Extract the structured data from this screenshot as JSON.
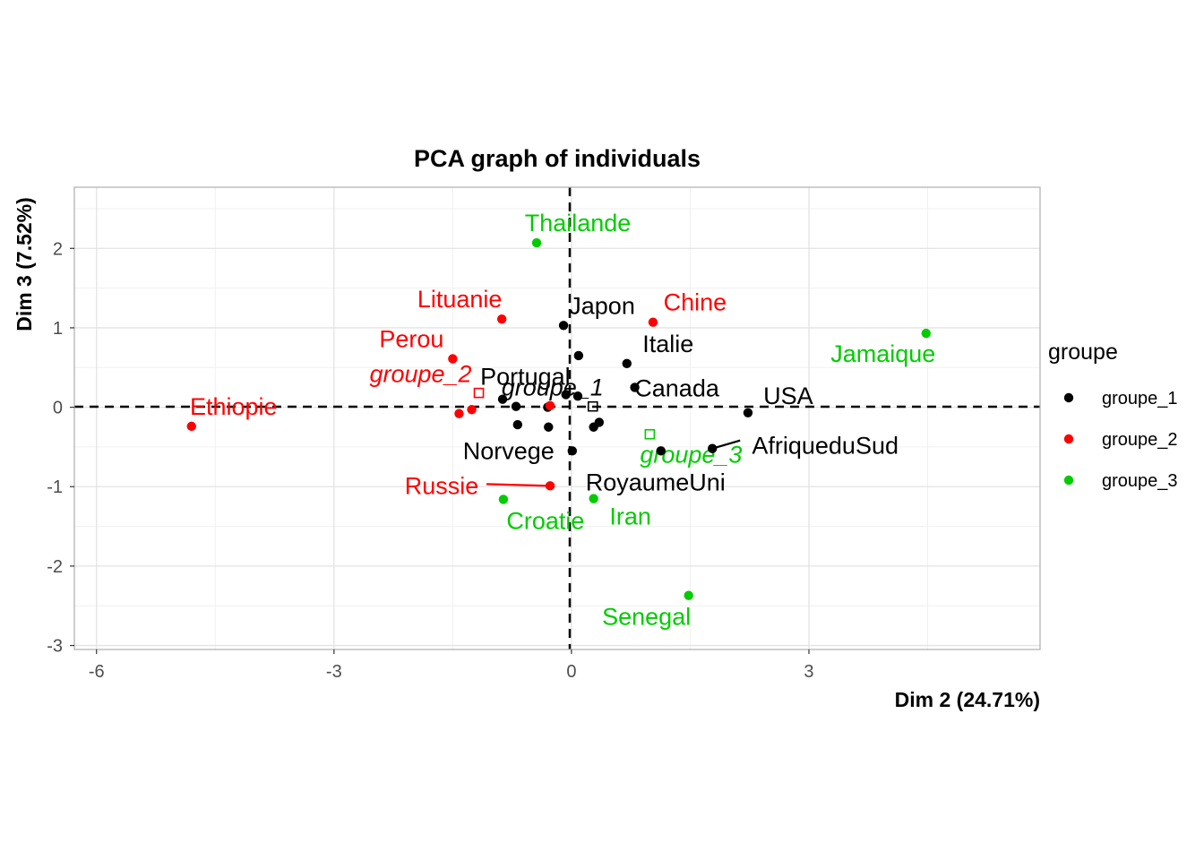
{
  "chart_data": {
    "type": "scatter",
    "title": "PCA graph of individuals",
    "xlabel": "Dim 2 (24.71%)",
    "ylabel": "Dim 3 (7.52%)",
    "xlim": [
      -6.28,
      5.92
    ],
    "ylim": [
      -3.05,
      2.77
    ],
    "xticks": [
      -6,
      -3,
      0,
      3
    ],
    "xtick_labels": [
      "-6",
      "-3",
      "0",
      "3"
    ],
    "yticks": [
      -3,
      -2,
      -1,
      0,
      1,
      2
    ],
    "ytick_labels": [
      "-3",
      "-2",
      "-1",
      "0",
      "1",
      "2"
    ],
    "grid": true,
    "reference_lines": {
      "x": 0,
      "y": 0,
      "style": "dashed"
    },
    "legend": {
      "title": "groupe",
      "position": "right",
      "entries": [
        "groupe_1",
        "groupe_2",
        "groupe_3"
      ]
    },
    "colors": {
      "groupe_1": "#000000",
      "groupe_2": "#ff0000",
      "groupe_3": "#00cc00"
    },
    "series": [
      {
        "name": "groupe_1",
        "points": [
          {
            "label": "Japon",
            "x": -0.1,
            "y": 1.03
          },
          {
            "label": "Italie",
            "x": 0.7,
            "y": 0.55
          },
          {
            "label": "Portugal",
            "x": -0.3,
            "y": 0.0
          },
          {
            "label": "Canada",
            "x": 0.8,
            "y": 0.25
          },
          {
            "label": "USA",
            "x": 2.23,
            "y": -0.07
          },
          {
            "label": "AfriqueduSud",
            "x": 1.78,
            "y": -0.52
          },
          {
            "label": "Norvege",
            "x": 0.01,
            "y": -0.55
          },
          {
            "label": "RoyaumeUni",
            "x": 1.13,
            "y": -0.55
          },
          {
            "label": "",
            "x": 0.09,
            "y": 0.65
          },
          {
            "label": "",
            "x": 0.08,
            "y": 0.14
          },
          {
            "label": "",
            "x": -0.07,
            "y": 0.16
          },
          {
            "label": "",
            "x": -0.87,
            "y": 0.1
          },
          {
            "label": "",
            "x": -0.7,
            "y": 0.01
          },
          {
            "label": "",
            "x": -0.68,
            "y": -0.22
          },
          {
            "label": "",
            "x": -0.29,
            "y": -0.25
          },
          {
            "label": "",
            "x": 0.28,
            "y": -0.25
          },
          {
            "label": "",
            "x": 0.35,
            "y": -0.19
          }
        ]
      },
      {
        "name": "groupe_2",
        "points": [
          {
            "label": "Lituanie",
            "x": -0.88,
            "y": 1.11
          },
          {
            "label": "Chine",
            "x": 1.03,
            "y": 1.07
          },
          {
            "label": "Perou",
            "x": -1.5,
            "y": 0.61
          },
          {
            "label": "Ethiopie",
            "x": -4.8,
            "y": -0.24
          },
          {
            "label": "Russie",
            "x": -0.27,
            "y": -0.99
          },
          {
            "label": "",
            "x": -1.42,
            "y": -0.08
          },
          {
            "label": "",
            "x": -1.26,
            "y": -0.03
          },
          {
            "label": "",
            "x": -0.27,
            "y": 0.02
          }
        ]
      },
      {
        "name": "groupe_3",
        "points": [
          {
            "label": "Thailande",
            "x": -0.44,
            "y": 2.07
          },
          {
            "label": "Jamaique",
            "x": 4.48,
            "y": 0.93
          },
          {
            "label": "Croatie",
            "x": -0.86,
            "y": -1.16
          },
          {
            "label": "Iran",
            "x": 0.28,
            "y": -1.15
          },
          {
            "label": "Senegal",
            "x": 1.48,
            "y": -2.37
          }
        ]
      }
    ],
    "barycenters": [
      {
        "label": "groupe_1",
        "series": "groupe_1",
        "x": 0.27,
        "y": 0.01
      },
      {
        "label": "groupe_2",
        "series": "groupe_2",
        "x": -1.17,
        "y": 0.18
      },
      {
        "label": "groupe_3",
        "series": "groupe_3",
        "x": 0.99,
        "y": -0.34
      }
    ]
  }
}
